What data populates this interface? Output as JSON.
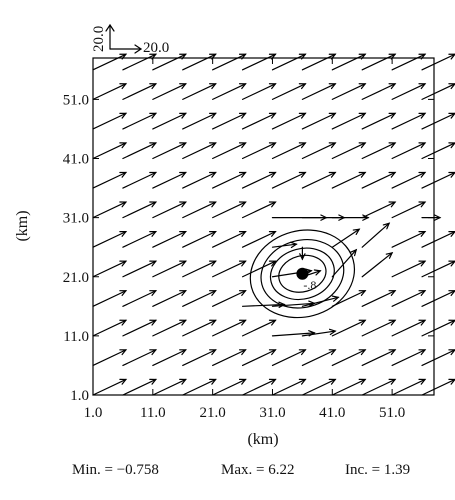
{
  "chart_data": {
    "type": "vector-field-contour",
    "xlabel": "(km)",
    "ylabel": "(km)",
    "xlim": [
      1.0,
      58.0
    ],
    "ylim": [
      1.0,
      58.0
    ],
    "x_ticks": [
      "1.0",
      "11.0",
      "21.0",
      "31.0",
      "41.0",
      "51.0"
    ],
    "y_ticks": [
      "1.0",
      "11.0",
      "21.0",
      "31.0",
      "41.0",
      "51.0"
    ],
    "x_tick_values": [
      1,
      11,
      21,
      31,
      41,
      51
    ],
    "y_tick_values": [
      1,
      11,
      21,
      31,
      41,
      51
    ],
    "reference_vector": {
      "u_label": "20.0",
      "v_label": "20.0"
    },
    "stats": {
      "min_label": "Min. = −0.758",
      "max_label": "Max. = 6.22",
      "inc_label": "Inc. = 1.39"
    },
    "contour_label": "-.8",
    "contour_center": [
      36,
      21.5
    ],
    "contour_levels": [
      {
        "rx": 4.0,
        "ry": 3.0
      },
      {
        "rx": 5.4,
        "ry": 4.2
      },
      {
        "rx": 7.0,
        "ry": 5.6
      },
      {
        "rx": 8.8,
        "ry": 7.2
      }
    ],
    "vector_grid": {
      "x": [
        1,
        6,
        11,
        16,
        21,
        26,
        31,
        36,
        41,
        46,
        51,
        56
      ],
      "y": [
        1,
        6,
        11,
        16,
        21,
        26,
        31,
        36,
        41,
        46,
        51,
        56
      ]
    },
    "base_wind": {
      "u": 5.5,
      "v": 2.6
    },
    "special_vectors": [
      {
        "x": 31,
        "y": 31,
        "u": 9.0,
        "v": 0.0
      },
      {
        "x": 36,
        "y": 31,
        "u": 7.0,
        "v": 0.0
      },
      {
        "x": 41,
        "y": 31,
        "u": 6.0,
        "v": 0.0
      },
      {
        "x": 26,
        "y": 16,
        "u": 7.0,
        "v": 0.3
      },
      {
        "x": 31,
        "y": 16,
        "u": 7.0,
        "v": 0.5
      },
      {
        "x": 36,
        "y": 16,
        "u": 6.0,
        "v": 1.5
      },
      {
        "x": 31,
        "y": 11,
        "u": 7.0,
        "v": 0.5
      },
      {
        "x": 36,
        "y": 11,
        "u": 5.5,
        "v": 0.8
      },
      {
        "x": 36,
        "y": 21,
        "u": 3.0,
        "v": 1.0
      },
      {
        "x": 41,
        "y": 21,
        "u": 4.0,
        "v": 4.5
      },
      {
        "x": 41,
        "y": 26,
        "u": 4.5,
        "v": 3.0
      },
      {
        "x": 36,
        "y": 26,
        "u": 0.0,
        "v": -2.0
      },
      {
        "x": 31,
        "y": 21,
        "u": 6.5,
        "v": 1.0
      },
      {
        "x": 31,
        "y": 26,
        "u": 4.0,
        "v": 0.5
      },
      {
        "x": 46,
        "y": 26,
        "u": 4.5,
        "v": 4.0
      },
      {
        "x": 46,
        "y": 21,
        "u": 5.0,
        "v": 4.0
      },
      {
        "x": 56,
        "y": 31,
        "u": 3.0,
        "v": 0.0
      }
    ]
  }
}
